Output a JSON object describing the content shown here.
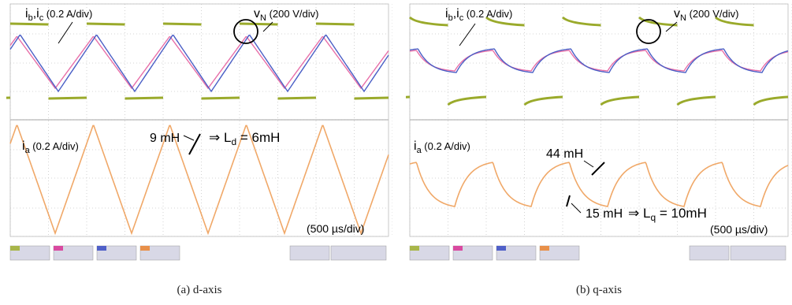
{
  "chart_data": [
    {
      "type": "line",
      "caption": "(a) d-axis",
      "top_trace": {
        "label_current": "i",
        "label_current_sub": "b",
        "label_current_sep": ",i",
        "label_current_sub2": "c",
        "label_current_scale": " (0.2 A/div)",
        "label_voltage": "v",
        "label_voltage_sub": "N",
        "label_voltage_scale": " (200 V/div)"
      },
      "bottom_trace": {
        "label": "i",
        "label_sub": "a",
        "label_scale": " (0.2 A/div)",
        "annotation_1": "9 mH",
        "annotation_result_arrow": "⇒",
        "annotation_result": " L",
        "annotation_result_sub": "d",
        "annotation_result_val": " = 6mH",
        "time_scale": "(500 µs/div)"
      },
      "waveform": "triangular",
      "colors": {
        "voltage": "#9aaa2b",
        "current_b": "#e86fa8",
        "current_c": "#4a5fc6",
        "current_a": "#f0a868"
      }
    },
    {
      "type": "line",
      "caption": "(b) q-axis",
      "top_trace": {
        "label_current": "i",
        "label_current_sub": "b",
        "label_current_sep": ",i",
        "label_current_sub2": "c",
        "label_current_scale": " (0.2 A/div)",
        "label_voltage": "v",
        "label_voltage_sub": "N",
        "label_voltage_scale": " (200 V/div)"
      },
      "bottom_trace": {
        "label": "i",
        "label_sub": "a",
        "label_scale": " (0.2 A/div)",
        "annotation_1": "44 mH",
        "annotation_2": "15 mH",
        "annotation_result_arrow": "⇒",
        "annotation_result": " L",
        "annotation_result_sub": "q",
        "annotation_result_val": " = 10mH",
        "time_scale": "(500 µs/div)"
      },
      "waveform": "curved",
      "colors": {
        "voltage": "#9aaa2b",
        "current_b": "#e86fa8",
        "current_c": "#4a5fc6",
        "current_a": "#f0a868"
      }
    }
  ]
}
